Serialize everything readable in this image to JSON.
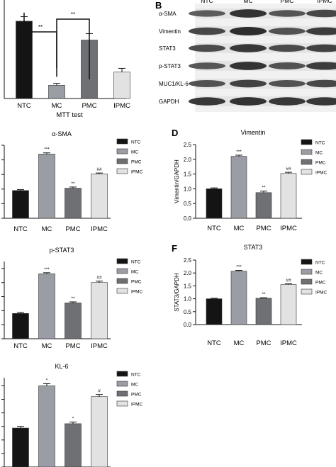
{
  "colors": {
    "NTC": "#141414",
    "MC": "#9a9ea4",
    "PMC": "#6e7074",
    "IPMC": "#e2e2e2"
  },
  "blot_panel": {
    "letter": "B",
    "lanes": [
      "NTC",
      "MC",
      "PMC",
      "IPMC"
    ],
    "rows": [
      "α-SMA",
      "Vimentin",
      "STAT3",
      "p-STAT3",
      "MUC1/KL-6",
      "GAPDH"
    ]
  },
  "chart_data": [
    {
      "id": "mtt",
      "type": "bar",
      "letter": "",
      "title": "",
      "categories": [
        "NTC",
        "MC",
        "PMC",
        "IPMC"
      ],
      "values": [
        2.05,
        0.35,
        1.55,
        0.7
      ],
      "errors": [
        0.12,
        0.05,
        0.17,
        0.1
      ],
      "significance": [
        "",
        "",
        "",
        ""
      ],
      "xlabel": "MTT test",
      "ylabel": "",
      "ylim": [
        0,
        2.8
      ],
      "yticks": [],
      "ytick_labels": [],
      "brackets": [
        {
          "from": 0,
          "to": 1,
          "label": "**"
        },
        {
          "from": 1,
          "to": 2,
          "label": "**"
        }
      ],
      "legend": false
    },
    {
      "id": "asma",
      "type": "bar",
      "letter": "",
      "title": "α-SMA",
      "categories": [
        "NTC",
        "MC",
        "PMC",
        "IPMC"
      ],
      "values": [
        0.95,
        2.2,
        1.03,
        1.52
      ],
      "errors": [
        0.03,
        0.04,
        0.04,
        0.03
      ],
      "significance": [
        "",
        "***",
        "**",
        "##"
      ],
      "xlabel": "",
      "ylabel": "",
      "ylim": [
        0,
        2.5
      ],
      "yticks": [
        0,
        0.5,
        1.0,
        1.5,
        2.0,
        2.5
      ],
      "ytick_labels": [],
      "legend": true
    },
    {
      "id": "vimentin",
      "type": "bar",
      "letter": "D",
      "title": "Vimentin",
      "categories": [
        "NTC",
        "MC",
        "PMC",
        "IPMC"
      ],
      "values": [
        1.0,
        2.1,
        0.87,
        1.52
      ],
      "errors": [
        0.03,
        0.04,
        0.05,
        0.04
      ],
      "significance": [
        "",
        "***",
        "**",
        "##"
      ],
      "xlabel": "",
      "ylabel": "Vimentin/GAPDH",
      "ylim": [
        0,
        2.5
      ],
      "yticks": [
        0,
        0.5,
        1.0,
        1.5,
        2.0,
        2.5
      ],
      "ytick_labels": [
        "0.0",
        "0.5",
        "1.0",
        "1.5",
        "2.0",
        "2.5"
      ],
      "legend": true
    },
    {
      "id": "pstat3",
      "type": "bar",
      "letter": "",
      "title": "p-STAT3",
      "categories": [
        "NTC",
        "MC",
        "PMC",
        "IPMC"
      ],
      "values": [
        0.72,
        1.85,
        1.02,
        1.6
      ],
      "errors": [
        0.03,
        0.03,
        0.03,
        0.04
      ],
      "significance": [
        "",
        "***",
        "**",
        "##"
      ],
      "xlabel": "",
      "ylabel": "",
      "ylim": [
        0,
        2.2
      ],
      "yticks": [
        0,
        0.4,
        0.8,
        1.2,
        1.6,
        2.0
      ],
      "ytick_labels": [],
      "legend": true
    },
    {
      "id": "stat3",
      "type": "bar",
      "letter": "F",
      "title": "STAT3",
      "categories": [
        "NTC",
        "MC",
        "PMC",
        "IPMC"
      ],
      "values": [
        1.0,
        2.07,
        1.02,
        1.55
      ],
      "errors": [
        0.02,
        0.03,
        0.02,
        0.03
      ],
      "significance": [
        "",
        "***",
        "**",
        "##"
      ],
      "xlabel": "",
      "ylabel": "STAT3/GAPDH",
      "ylim": [
        0,
        2.5
      ],
      "yticks": [
        0,
        0.5,
        1.0,
        1.5,
        2.0,
        2.5
      ],
      "ytick_labels": [
        "0.0",
        "0.5",
        "1.0",
        "1.5",
        "2.0",
        "2.5"
      ],
      "legend": true
    },
    {
      "id": "kl6",
      "type": "bar",
      "letter": "",
      "title": "KL-6",
      "categories": [
        "NTC",
        "MC",
        "PMC",
        "IPMC"
      ],
      "values": [
        0.72,
        1.5,
        0.8,
        1.3
      ],
      "errors": [
        0.03,
        0.04,
        0.03,
        0.04
      ],
      "significance": [
        "",
        "*",
        "*",
        "#"
      ],
      "xlabel": "",
      "ylabel": "",
      "ylim": [
        0,
        1.65
      ],
      "yticks": [
        0,
        0.25,
        0.5,
        0.75,
        1.0,
        1.25,
        1.5
      ],
      "ytick_labels": [],
      "legend": true
    }
  ]
}
